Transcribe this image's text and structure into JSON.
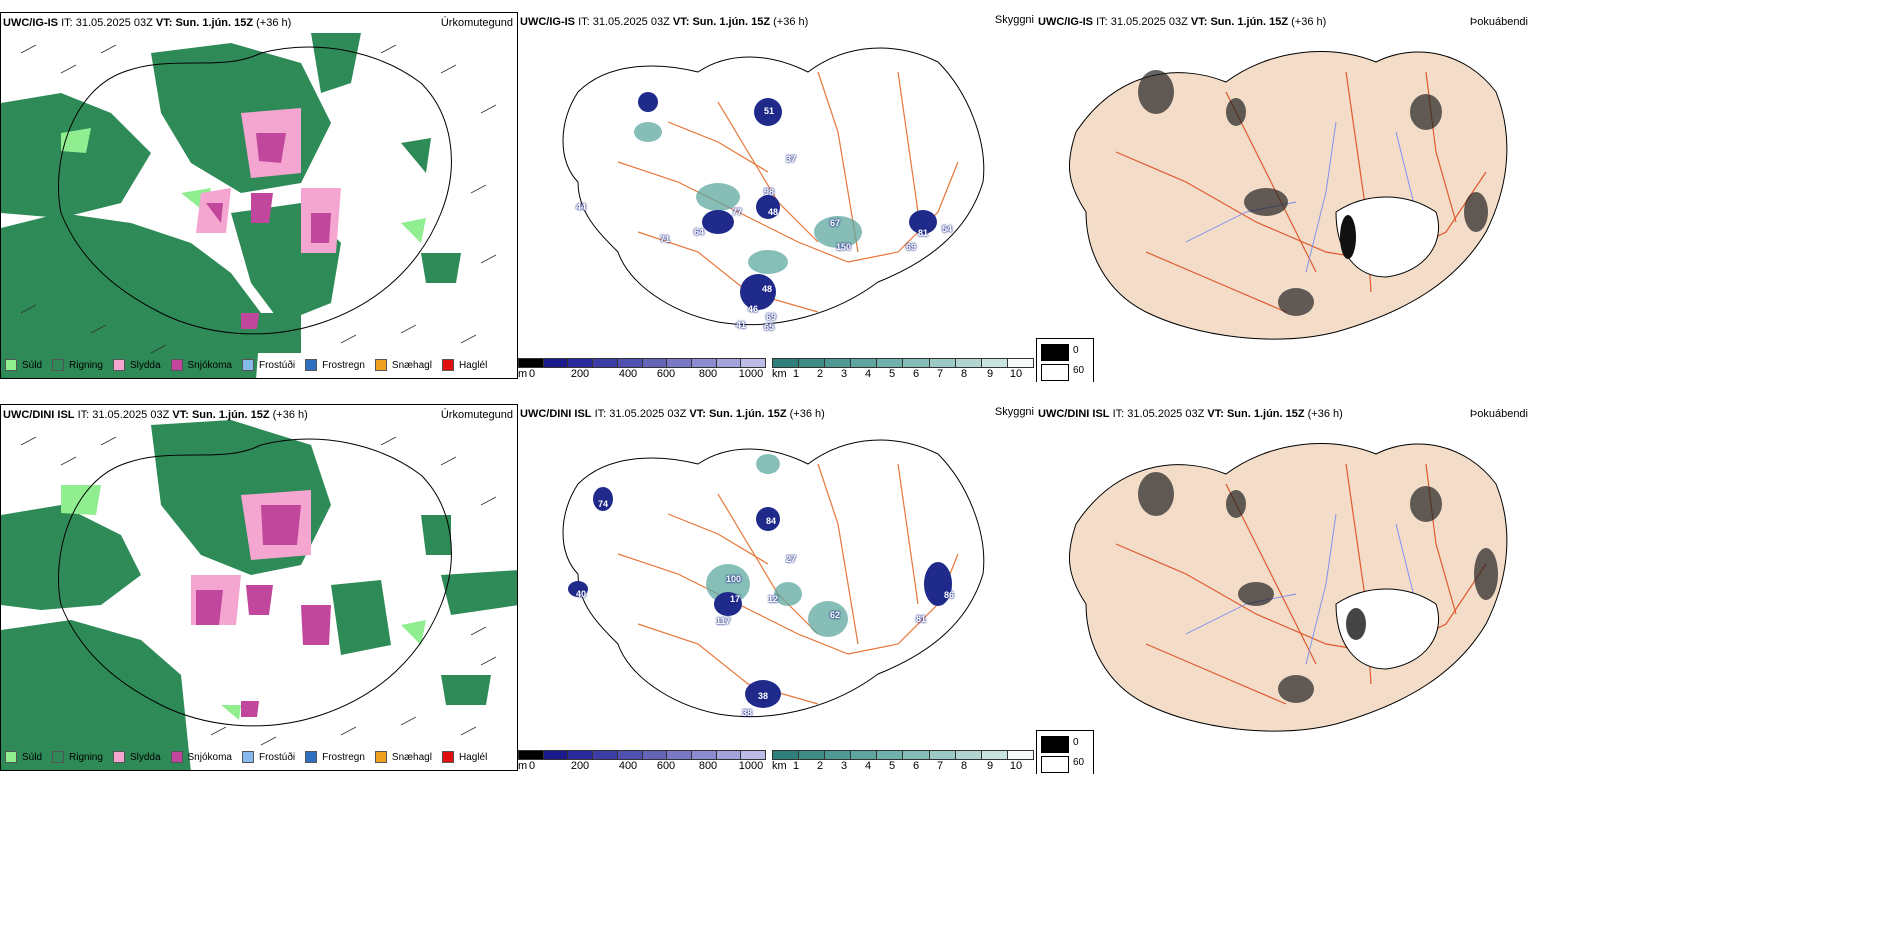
{
  "panels": {
    "top_left": {
      "model": "UWC/IG-IS",
      "it_label": "IT:",
      "it": "31.05.2025 03Z",
      "vt_label": "VT:",
      "vt": "Sun. 1.jún. 15Z",
      "lead": "(+36 h)",
      "title_right": "Úrkomutegund"
    },
    "top_mid": {
      "model": "UWC/IG-IS",
      "it_label": "IT:",
      "it": "31.05.2025 03Z",
      "vt_label": "VT:",
      "vt": "Sun. 1.jún. 15Z",
      "lead": "(+36 h)",
      "title_right": "Skyggni"
    },
    "top_right": {
      "model": "UWC/IG-IS",
      "it_label": "IT:",
      "it": "31.05.2025 03Z",
      "vt_label": "VT:",
      "vt": "Sun. 1.jún. 15Z",
      "lead": "(+36 h)",
      "title_right": "Þokuábendi"
    },
    "bot_left": {
      "model": "UWC/DINI ISL",
      "it_label": "IT:",
      "it": "31.05.2025 03Z",
      "vt_label": "VT:",
      "vt": "Sun. 1.jún. 15Z",
      "lead": "(+36 h)",
      "title_right": "Úrkomutegund"
    },
    "bot_mid": {
      "model": "UWC/DINI ISL",
      "it_label": "IT:",
      "it": "31.05.2025 03Z",
      "vt_label": "VT:",
      "vt": "Sun. 1.jún. 15Z",
      "lead": "(+36 h)",
      "title_right": "Skyggni"
    },
    "bot_right": {
      "model": "UWC/DINI ISL",
      "it_label": "IT:",
      "it": "31.05.2025 03Z",
      "vt_label": "VT:",
      "vt": "Sun. 1.jún. 15Z",
      "lead": "(+36 h)",
      "title_right": "Þokuábendi"
    }
  },
  "precip_legend": [
    {
      "label": "Súld",
      "color": "#90ee90"
    },
    {
      "label": "Rigning",
      "color": "#2e8b57"
    },
    {
      "label": "Slydda",
      "color": "#f4a6d0"
    },
    {
      "label": "Snjókoma",
      "color": "#c0479b"
    },
    {
      "label": "Frostúði",
      "color": "#87bbee"
    },
    {
      "label": "Frostregn",
      "color": "#2f6fbf"
    },
    {
      "label": "Snæhagl",
      "color": "#f0a020"
    },
    {
      "label": "Haglél",
      "color": "#e01010"
    }
  ],
  "cloud_base_bar": {
    "unit": "m",
    "ticks": [
      "0",
      "200",
      "400",
      "600",
      "800",
      "1000"
    ]
  },
  "visibility_bar": {
    "unit": "km",
    "ticks": [
      "1",
      "2",
      "3",
      "4",
      "5",
      "6",
      "7",
      "8",
      "9",
      "10"
    ]
  },
  "fog_legend": {
    "min": "0",
    "max": "60"
  },
  "visibility_labels_top": [
    "51",
    "37",
    "98",
    "77",
    "48",
    "67",
    "150",
    "81",
    "69",
    "54",
    "64",
    "71",
    "48",
    "46",
    "69",
    "41",
    "65",
    "44"
  ],
  "visibility_labels_bottom": [
    "100",
    "17",
    "12",
    "117",
    "62",
    "81",
    "86",
    "38",
    "38",
    "40",
    "74",
    "84",
    "27"
  ],
  "colors": {
    "rain": "#2e8b57",
    "drizzle": "#90ee90",
    "sleet": "#f4a6d0",
    "snow": "#c0479b",
    "land": "#f3dcc8",
    "roads": "#e8763a",
    "rivers": "#7a8cf0",
    "cloud_dark": "#1f2a8a",
    "vis_teal": "#5ea8a0"
  }
}
